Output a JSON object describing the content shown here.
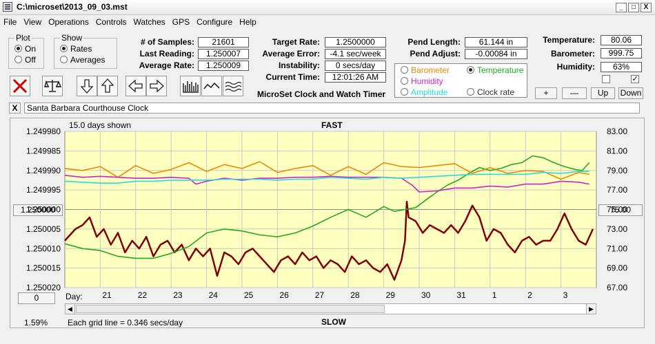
{
  "window": {
    "title": "C:\\microset\\2013_09_03.mst",
    "btn_min": "_",
    "btn_max": "□",
    "btn_close": "X"
  },
  "menu": [
    "File",
    "View",
    "Operations",
    "Controls",
    "Watches",
    "GPS",
    "Configure",
    "Help"
  ],
  "plot_group": {
    "title": "Plot",
    "on": "On",
    "off": "Off",
    "selected": "On"
  },
  "show_group": {
    "title": "Show",
    "rates": "Rates",
    "averages": "Averages",
    "selected": "Rates"
  },
  "stats": {
    "samples_label": "# of Samples:",
    "samples": "21601",
    "last_label": "Last Reading:",
    "last": "1.250007",
    "avg_rate_label": "Average Rate:",
    "avg_rate": "1.250009",
    "target_label": "Target Rate:",
    "target": "1.2500000",
    "avg_err_label": "Average Error:",
    "avg_err": "-4.1 sec/week",
    "instab_label": "Instability:",
    "instab": "0 secs/day",
    "time_label": "Current Time:",
    "time": "12:01:26 AM",
    "pend_len_label": "Pend Length:",
    "pend_len": "61.144 in",
    "pend_adj_label": "Pend Adjust:",
    "pend_adj": "-0.00084 in",
    "temp_label": "Temperature:",
    "temp": "80.06",
    "baro_label": "Barometer:",
    "baro": "999.75",
    "hum_label": "Humidity:",
    "hum": "63%"
  },
  "app_caption": "MicroSet Clock and Watch Timer",
  "aux_options": {
    "barometer": "Barometer",
    "temperature": "Temperature",
    "humidity": "Humidity",
    "amplitude": "Amplitude",
    "clock_rate": "Clock rate",
    "selected": "Temperature"
  },
  "aux_buttons": {
    "plus": "+",
    "minus": "—",
    "up": "Up",
    "down": "Down"
  },
  "checks": {
    "left": false,
    "right": true,
    "mark": "✓"
  },
  "close_x": "X",
  "clock_name": "Santa Barbara Courthouse Clock",
  "chart_panel": {
    "days_shown": "15.0 days shown",
    "fast": "FAST",
    "slow": "SLOW",
    "center_left": "1.250000",
    "center_right": "75.00",
    "zero_btn": "0",
    "pct": "1.59%",
    "grid_note": "Each grid line = 0.346 secs/day",
    "day_label": "Day:"
  },
  "chart_data": {
    "type": "line",
    "x_label": "Day:",
    "x_ticks": [
      "21",
      "22",
      "23",
      "24",
      "25",
      "26",
      "27",
      "28",
      "29",
      "30",
      "31",
      "1",
      "2",
      "3"
    ],
    "x_range": [
      20.0,
      35.0
    ],
    "y_left_ticks": [
      "1.249980",
      "1.249985",
      "1.249990",
      "1.249995",
      "1.250000",
      "1.250005",
      "1.250010",
      "1.250015",
      "1.250020"
    ],
    "y_left_range": [
      1.24998,
      1.25002
    ],
    "y_left_inverted": true,
    "y_right_ticks": [
      "83.00",
      "81.00",
      "79.00",
      "77.00",
      "75.00",
      "73.00",
      "71.00",
      "69.00",
      "67.00"
    ],
    "y_right_range": [
      67.0,
      83.0
    ],
    "grid": true,
    "series": [
      {
        "name": "Rate",
        "color": "#800000",
        "axis": "left",
        "x": [
          20.0,
          20.3,
          20.5,
          20.7,
          20.9,
          21.1,
          21.3,
          21.5,
          21.7,
          21.9,
          22.1,
          22.3,
          22.5,
          22.7,
          22.9,
          23.1,
          23.3,
          23.5,
          23.7,
          23.9,
          24.1,
          24.3,
          24.5,
          24.7,
          24.9,
          25.1,
          25.3,
          25.5,
          25.7,
          25.9,
          26.1,
          26.3,
          26.5,
          26.7,
          26.9,
          27.1,
          27.3,
          27.5,
          27.7,
          27.9,
          28.1,
          28.3,
          28.5,
          28.7,
          28.9,
          29.1,
          29.3,
          29.5,
          29.6,
          29.65,
          29.7,
          29.9,
          30.1,
          30.3,
          30.5,
          30.7,
          30.9,
          31.1,
          31.3,
          31.5,
          31.7,
          31.9,
          32.1,
          32.3,
          32.5,
          32.7,
          32.9,
          33.1,
          33.3,
          33.5,
          33.7,
          33.9,
          34.1,
          34.3,
          34.5,
          34.7,
          34.9
        ],
        "y": [
          1.250008,
          1.250005,
          1.250004,
          1.250002,
          1.250007,
          1.250005,
          1.250009,
          1.250006,
          1.250011,
          1.250008,
          1.25001,
          1.250007,
          1.250012,
          1.250009,
          1.250008,
          1.250011,
          1.250009,
          1.250013,
          1.25001,
          1.250012,
          1.25001,
          1.250017,
          1.250011,
          1.250012,
          1.250014,
          1.250011,
          1.25001,
          1.250012,
          1.250014,
          1.250016,
          1.250013,
          1.250012,
          1.250014,
          1.250011,
          1.250013,
          1.250012,
          1.250015,
          1.250013,
          1.250014,
          1.250016,
          1.250012,
          1.250014,
          1.250013,
          1.250015,
          1.250016,
          1.250014,
          1.250018,
          1.250013,
          1.250008,
          1.249998,
          1.250002,
          1.250003,
          1.250006,
          1.250004,
          1.250005,
          1.250006,
          1.250004,
          1.250006,
          1.250003,
          1.249999,
          1.250002,
          1.250008,
          1.250005,
          1.250006,
          1.250009,
          1.250011,
          1.250008,
          1.250007,
          1.250009,
          1.250008,
          1.250008,
          1.250005,
          1.250001,
          1.250005,
          1.250008,
          1.250009,
          1.250005
        ]
      },
      {
        "name": "Temperature",
        "color": "#22aa22",
        "axis": "right",
        "x": [
          20.0,
          20.5,
          21.0,
          21.5,
          22.0,
          22.5,
          23.0,
          23.5,
          24.0,
          24.5,
          25.0,
          25.5,
          26.0,
          26.5,
          27.0,
          27.5,
          28.0,
          28.5,
          29.0,
          29.3,
          29.6,
          29.9,
          30.2,
          30.5,
          30.8,
          31.1,
          31.4,
          31.7,
          32.0,
          32.3,
          32.6,
          32.9,
          33.2,
          33.5,
          33.8,
          34.1,
          34.4,
          34.6,
          34.8
        ],
        "y": [
          71.5,
          71.0,
          70.8,
          70.2,
          70.0,
          70.0,
          70.5,
          71.2,
          72.6,
          73.0,
          72.8,
          72.4,
          72.2,
          72.6,
          73.3,
          74.2,
          75.0,
          74.2,
          75.3,
          74.8,
          75.0,
          75.2,
          76.0,
          76.8,
          77.5,
          78.0,
          78.7,
          79.3,
          79.0,
          79.2,
          79.6,
          79.8,
          80.5,
          80.3,
          79.8,
          79.4,
          79.1,
          79.0,
          79.8
        ]
      },
      {
        "name": "Barometer",
        "color": "#ee8800",
        "axis": "right",
        "x": [
          20.0,
          20.5,
          21.0,
          21.5,
          22.0,
          22.5,
          23.0,
          23.5,
          24.0,
          24.5,
          25.0,
          25.5,
          26.0,
          26.5,
          27.0,
          27.5,
          28.0,
          28.5,
          29.0,
          29.5,
          30.0,
          30.5,
          31.0,
          31.5,
          32.0,
          32.5,
          33.0,
          33.5,
          34.0,
          34.5,
          34.8
        ],
        "y": [
          79.2,
          79.0,
          79.4,
          78.3,
          79.5,
          78.7,
          79.1,
          79.8,
          78.9,
          79.6,
          79.2,
          79.9,
          78.8,
          79.2,
          79.5,
          78.5,
          79.4,
          78.6,
          79.8,
          79.4,
          79.3,
          79.5,
          79.7,
          78.7,
          79.3,
          78.7,
          79.0,
          78.9,
          78.1,
          78.8,
          78.6
        ]
      },
      {
        "name": "Humidity",
        "color": "#cc22cc",
        "axis": "right",
        "x": [
          20.0,
          20.5,
          21.0,
          21.5,
          22.0,
          22.5,
          23.0,
          23.5,
          23.7,
          24.0,
          24.5,
          25.0,
          25.5,
          26.0,
          26.5,
          27.0,
          27.5,
          28.0,
          28.5,
          29.0,
          29.5,
          29.8,
          30.0,
          30.5,
          31.0,
          31.5,
          32.0,
          32.5,
          33.0,
          33.5,
          34.0,
          34.5,
          34.8
        ],
        "y": [
          78.5,
          78.3,
          78.4,
          78.3,
          78.2,
          78.2,
          78.3,
          78.2,
          77.6,
          77.9,
          78.2,
          78.0,
          78.2,
          78.2,
          78.3,
          78.3,
          78.4,
          78.3,
          78.3,
          78.3,
          78.2,
          77.5,
          76.8,
          76.9,
          77.2,
          77.2,
          77.4,
          77.3,
          77.6,
          77.6,
          77.9,
          77.8,
          77.6
        ]
      },
      {
        "name": "Amplitude",
        "color": "#22dddd",
        "axis": "right",
        "x": [
          20.0,
          20.5,
          21.0,
          21.5,
          22.0,
          22.5,
          23.0,
          23.5,
          24.0,
          24.5,
          25.0,
          25.5,
          26.0,
          26.5,
          27.0,
          27.5,
          28.0,
          28.5,
          29.0,
          29.5,
          30.0,
          30.5,
          31.0,
          31.5,
          32.0,
          32.5,
          33.0,
          33.5,
          34.0,
          34.5,
          34.8
        ],
        "y": [
          77.9,
          77.8,
          77.7,
          77.7,
          77.9,
          77.9,
          78.0,
          78.0,
          78.0,
          78.1,
          78.1,
          78.1,
          78.0,
          78.1,
          78.1,
          78.3,
          78.2,
          78.1,
          78.3,
          78.2,
          78.3,
          78.4,
          78.5,
          78.6,
          78.6,
          78.6,
          78.6,
          78.8,
          78.7,
          78.9,
          78.9
        ]
      }
    ]
  }
}
